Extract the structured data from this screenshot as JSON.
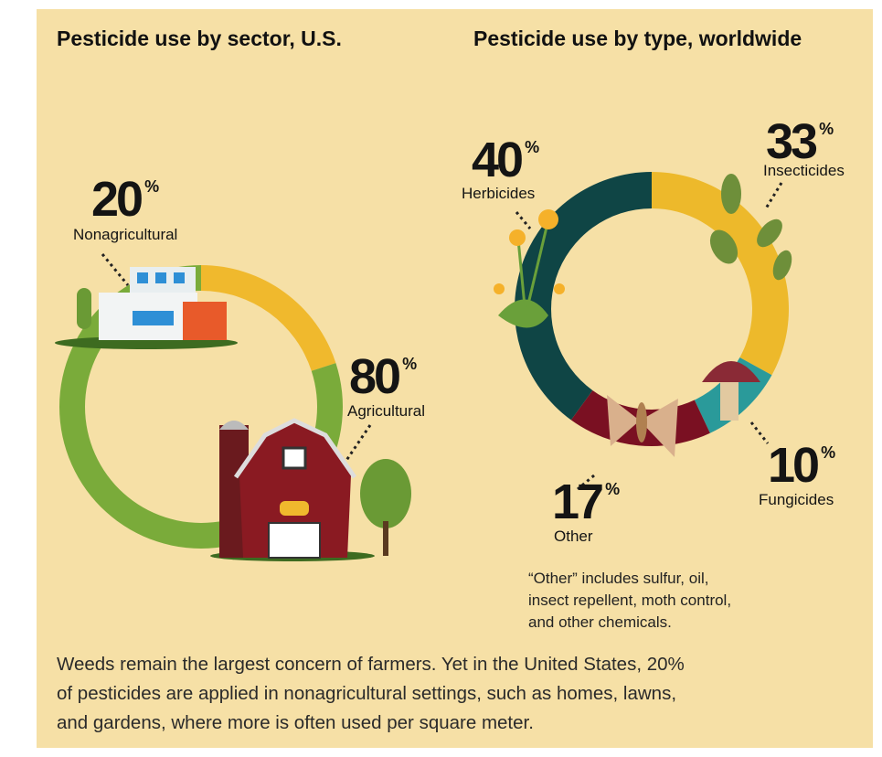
{
  "chart_data": [
    {
      "type": "donut",
      "title": "Pesticide use by sector, U.S.",
      "categories": [
        "Nonagricultural",
        "Agricultural"
      ],
      "values": [
        20,
        80
      ],
      "unit": "%",
      "colors": [
        "#f0b92d",
        "#7aab3a"
      ]
    },
    {
      "type": "donut",
      "title": "Pesticide use by type, worldwide",
      "categories": [
        "Insecticides",
        "Fungicides",
        "Other",
        "Herbicides"
      ],
      "values": [
        33,
        10,
        17,
        40
      ],
      "unit": "%",
      "colors": [
        "#edb92b",
        "#2a9a9a",
        "#7a1022",
        "#0f4545"
      ],
      "note": [
        "“Other” includes sulfur, oil,",
        "insect repellent, moth control,",
        "and other chemicals."
      ]
    }
  ],
  "caption": [
    "Weeds remain the largest concern of farmers. Yet in the United States, 20%",
    "of pesticides are applied in nonagricultural settings, such as homes, lawns,",
    "and gardens, where more is often used per square meter."
  ]
}
